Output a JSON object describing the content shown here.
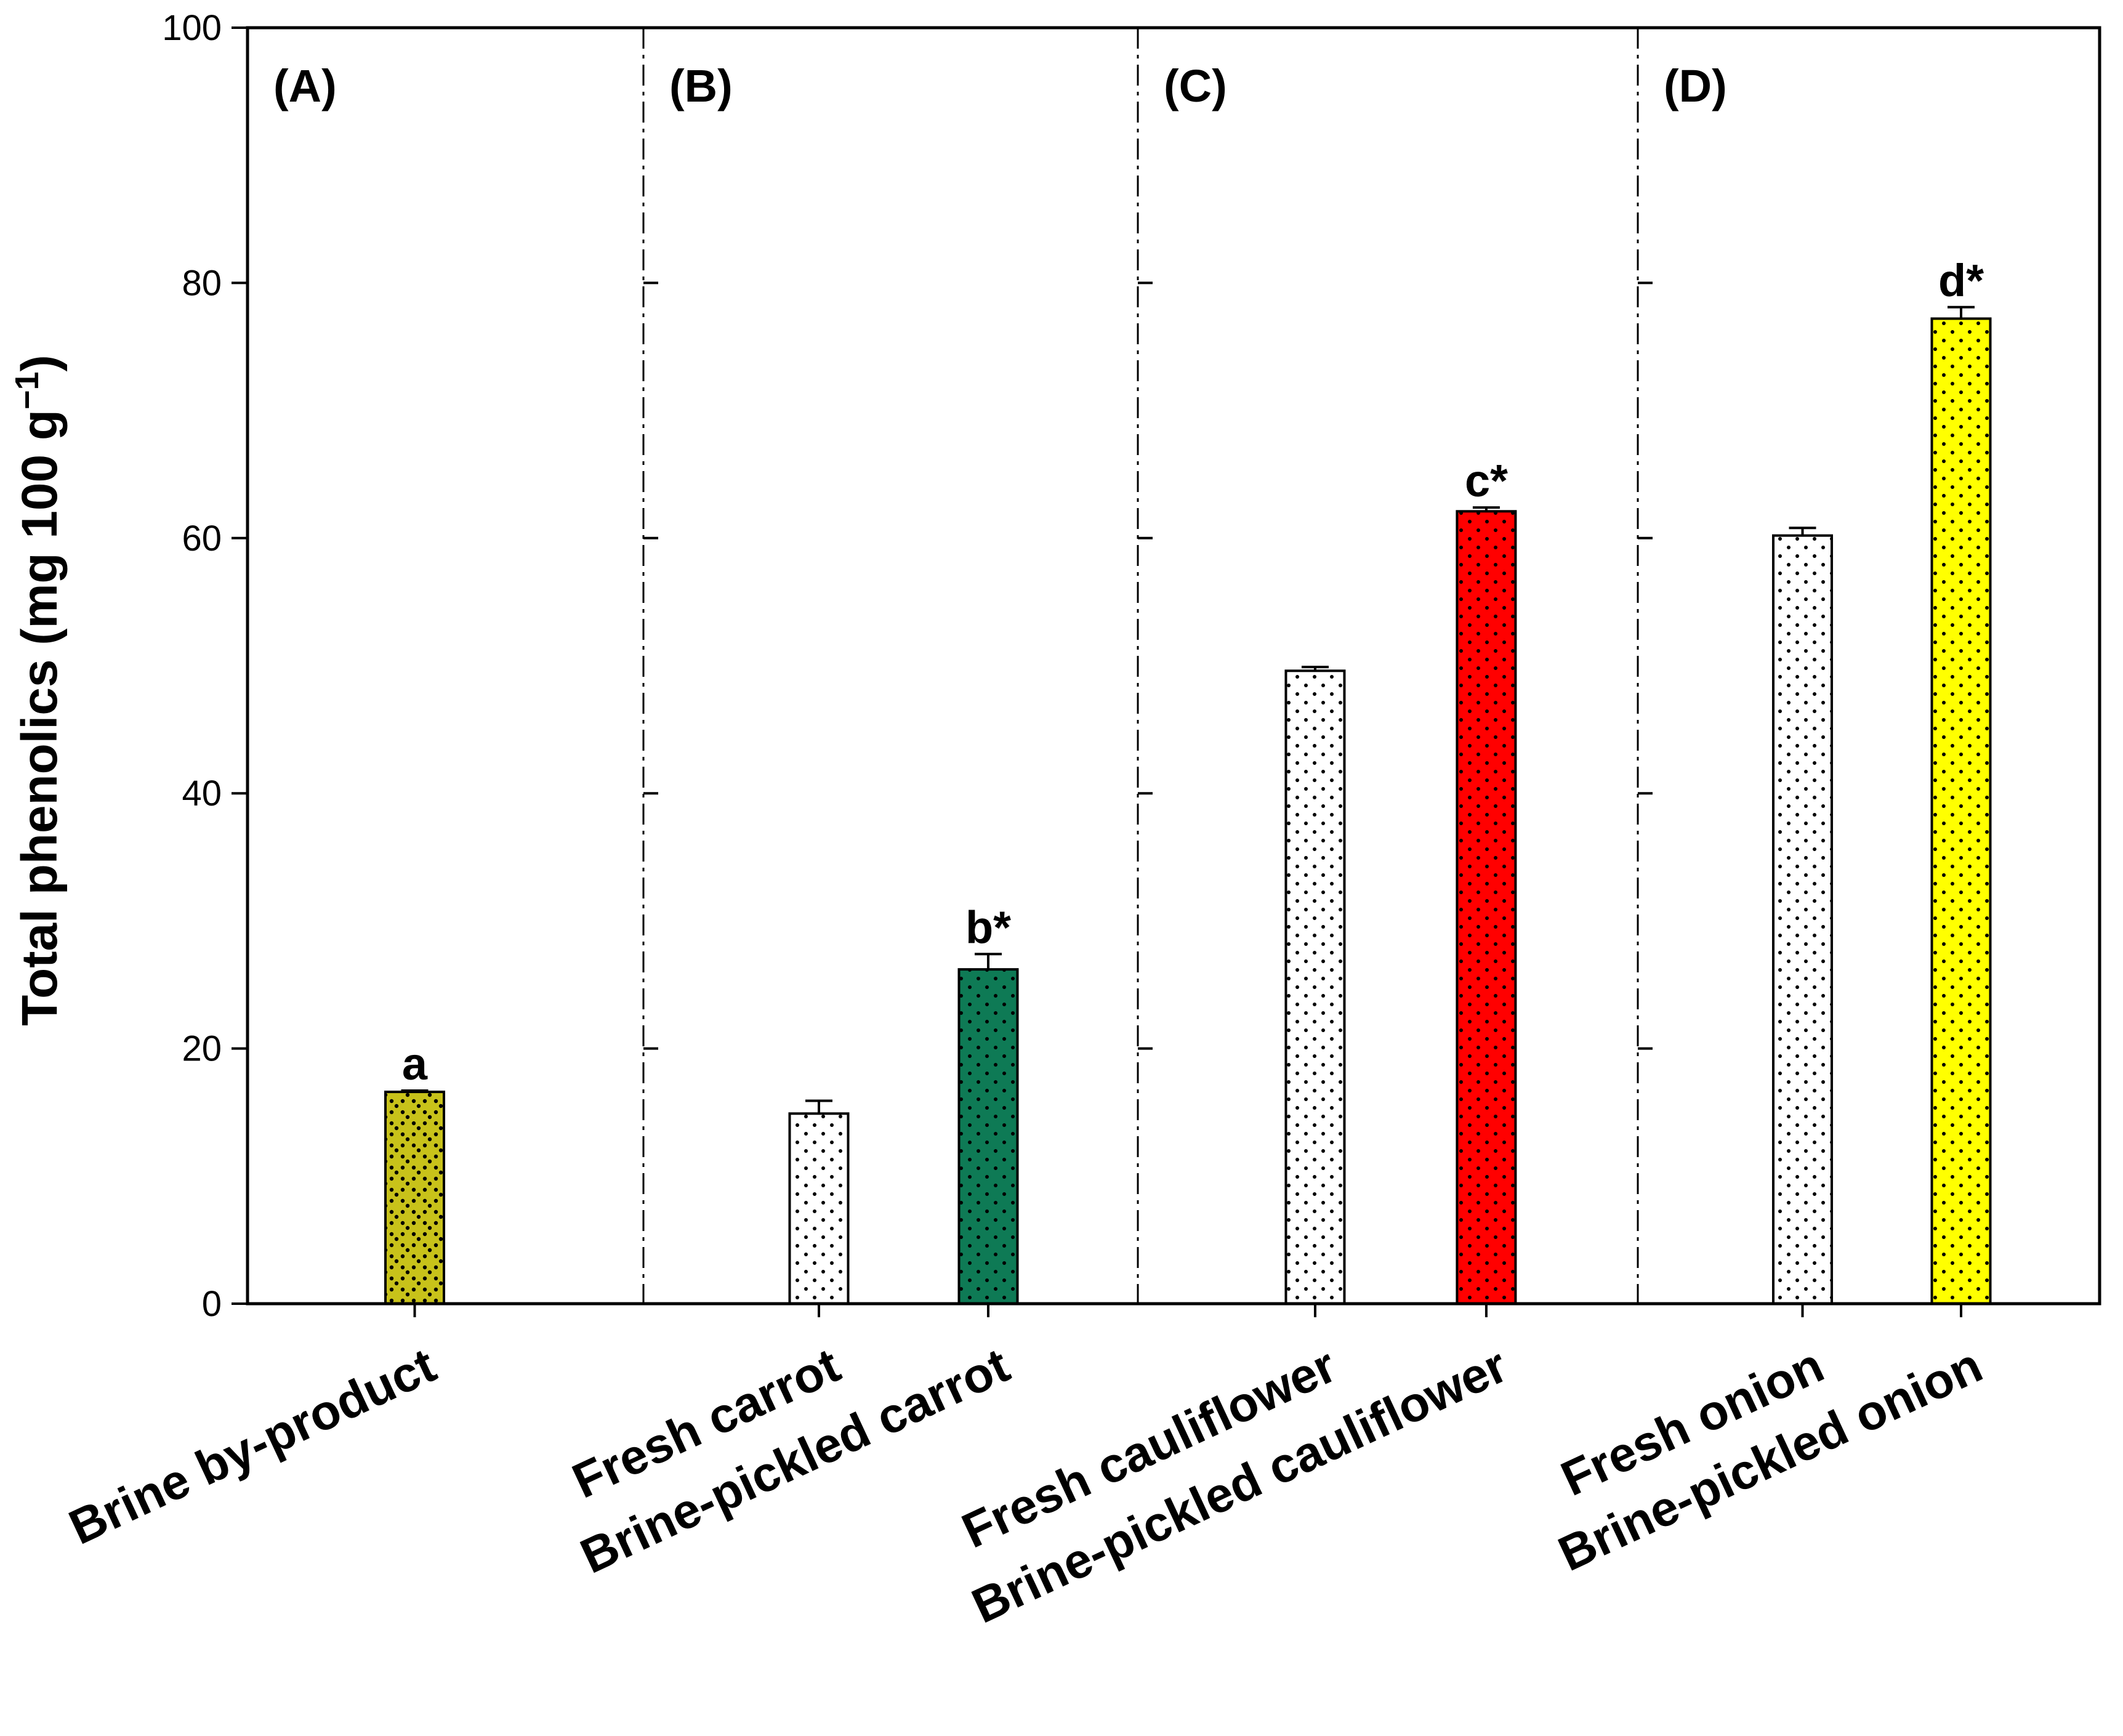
{
  "chart_data": {
    "type": "bar",
    "ylabel": "Total phenolics (mg 100 g",
    "ylabel_sup": "−1",
    "ylabel_close": ")",
    "ylim": [
      0,
      100
    ],
    "yticks": [
      "0",
      "20",
      "40",
      "60",
      "80",
      "100"
    ],
    "ytick_values": [
      0,
      20,
      40,
      60,
      80,
      100
    ],
    "grid": false,
    "legend": "none",
    "panels": [
      {
        "label": "(A)",
        "bars": [
          {
            "category": "Brine by-product",
            "value": 16.6,
            "error": 0.1,
            "sig": "a",
            "color": "#c8c21a",
            "pattern": "dense"
          }
        ]
      },
      {
        "label": "(B)",
        "bars": [
          {
            "category": "Fresh carrot",
            "value": 14.9,
            "error": 1.0,
            "sig": "",
            "color": "#ffffff",
            "pattern": "dots"
          },
          {
            "category": "Brine-pickled carrot",
            "value": 26.2,
            "error": 1.2,
            "sig": "b*",
            "color": "#0e7a55",
            "pattern": "dots"
          }
        ]
      },
      {
        "label": "(C)",
        "bars": [
          {
            "category": "Fresh cauliflower",
            "value": 49.6,
            "error": 0.3,
            "sig": "",
            "color": "#ffffff",
            "pattern": "dots"
          },
          {
            "category": "Brine-pickled cauliflower",
            "value": 62.1,
            "error": 0.3,
            "sig": "c*",
            "color": "#ff0000",
            "pattern": "dots"
          }
        ]
      },
      {
        "label": "(D)",
        "bars": [
          {
            "category": "Fresh onion",
            "value": 60.2,
            "error": 0.6,
            "sig": "",
            "color": "#ffffff",
            "pattern": "dots"
          },
          {
            "category": "Brine-pickled onion",
            "value": 77.2,
            "error": 0.9,
            "sig": "d*",
            "color": "#ffff00",
            "pattern": "dots"
          }
        ]
      }
    ]
  }
}
